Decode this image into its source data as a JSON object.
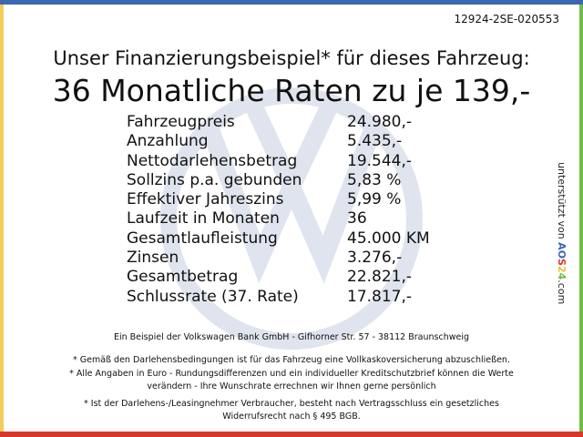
{
  "colors": {
    "top": "#3e67b1",
    "left": "#f2cd5c",
    "right": "#6cbe45",
    "bottom": "#d9372b",
    "watermark": "#dfe4ee"
  },
  "watermark_icon": "vw-logo",
  "code": "12924-2SE-020553",
  "title": "Unser Finanzierungsbeispiel* für dieses Fahrzeug:",
  "headline": "36 Monatliche Raten zu je 139,-",
  "rows": [
    {
      "label": "Fahrzeugpreis",
      "value": "24.980,-"
    },
    {
      "label": "Anzahlung",
      "value": "5.435,-"
    },
    {
      "label": "Nettodarlehensbetrag",
      "value": "19.544,-"
    },
    {
      "label": "Sollzins p.a. gebunden",
      "value": "5,83 %"
    },
    {
      "label": "Effektiver Jahreszins",
      "value": "5,99 %"
    },
    {
      "label": "Laufzeit in Monaten",
      "value": "36"
    },
    {
      "label": "Gesamtlaufleistung",
      "value": "45.000 KM"
    },
    {
      "label": "Zinsen",
      "value": "3.276,-"
    },
    {
      "label": "Gesamtbetrag",
      "value": "22.821,-"
    },
    {
      "label": "Schlussrate (37. Rate)",
      "value": "17.817,-"
    }
  ],
  "bank": "Ein Beispiel der Volkswagen Bank GmbH - Gifhorner Str. 57 - 38112 Braunschweig",
  "footnotes": [
    "* Gemäß den Darlehensbedingungen ist für das Fahrzeug eine Vollkaskoversicherung abzuschließen.",
    "* Alle Angaben in Euro - Rundungsdifferenzen und ein individueller Kreditschutzbrief können die Werte",
    "verändern - Ihre Wunschrate errechnen wir Ihnen gerne persönlich",
    "* Ist der Darlehens-/Leasingnehmer Verbraucher, besteht nach Vertragsschluss ein gesetzliches",
    "Widerrufsrecht nach § 495 BGB."
  ],
  "side": {
    "prefix": "unterstützt von",
    "logo_letters": [
      "A",
      "O",
      "S",
      "2",
      "4"
    ],
    "suffix": ".com"
  }
}
